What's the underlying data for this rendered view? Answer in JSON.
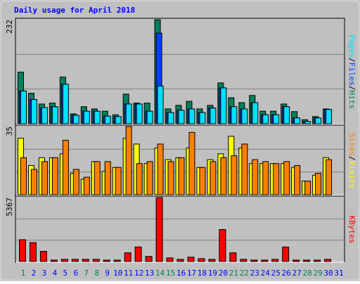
{
  "chart_data": {
    "type": "bar",
    "title": "Daily usage for April 2018",
    "categories": [
      "1",
      "2",
      "3",
      "4",
      "5",
      "6",
      "7",
      "8",
      "9",
      "10",
      "11",
      "12",
      "13",
      "14",
      "15",
      "16",
      "17",
      "18",
      "19",
      "20",
      "21",
      "22",
      "23",
      "24",
      "25",
      "26",
      "27",
      "28",
      "29",
      "30",
      "31"
    ],
    "category_colors": [
      "#00805c",
      "#0000ff",
      "#0000ff",
      "#0000ff",
      "#0000ff",
      "#0000ff",
      "#00805c",
      "#00805c",
      "#0000ff",
      "#0000ff",
      "#0000ff",
      "#0000ff",
      "#0000ff",
      "#00805c",
      "#00805c",
      "#0000ff",
      "#0000ff",
      "#0000ff",
      "#0000ff",
      "#0000ff",
      "#00805c",
      "#00805c",
      "#0000ff",
      "#0000ff",
      "#0000ff",
      "#0000ff",
      "#0000ff",
      "#00805c",
      "#00805c",
      "#0000ff",
      "#0000ff"
    ],
    "separator": "/",
    "grid": true,
    "panels": [
      {
        "ylim": [
          0,
          232
        ],
        "yticks": [
          232
        ],
        "series": [
          {
            "name": "Hits",
            "color": "#00805c",
            "values": [
              115,
              68,
              44,
              46,
              104,
              22,
              38,
              33,
              28,
              20,
              66,
              46,
              46,
              232,
              33,
              41,
              50,
              33,
              41,
              91,
              58,
              47,
              63,
              28,
              28,
              44,
              27,
              9,
              16,
              33,
              0
            ]
          },
          {
            "name": "Files",
            "color": "#0040ff",
            "values": [
              73,
              54,
              36,
              38,
              88,
              19,
              28,
              28,
              17,
              16,
              44,
              44,
              28,
              202,
              25,
              30,
              33,
              25,
              35,
              80,
              38,
              33,
              47,
              20,
              20,
              38,
              13,
              5,
              13,
              32,
              0
            ]
          },
          {
            "name": "Pages",
            "color": "#00e0ff",
            "values": [
              73,
              54,
              36,
              38,
              88,
              19,
              28,
              28,
              17,
              16,
              44,
              44,
              28,
              84,
              25,
              30,
              33,
              25,
              35,
              80,
              38,
              33,
              47,
              20,
              20,
              38,
              13,
              5,
              13,
              32,
              0
            ]
          }
        ]
      },
      {
        "ylim": [
          0,
          35
        ],
        "yticks": [
          35
        ],
        "series": [
          {
            "name": "Visits",
            "color": "#ffff00",
            "values": [
              29,
              15,
              19,
              19,
              21,
              11,
              8,
              17,
              12,
              14,
              29,
              26,
              16,
              24,
              18,
              19,
              24,
              14,
              18,
              21,
              30,
              24,
              16,
              16,
              16,
              16,
              14,
              7,
              10,
              19,
              0
            ]
          },
          {
            "name": "Sites",
            "color": "#ff8000",
            "values": [
              19,
              13,
              17,
              19,
              28,
              13,
              9,
              17,
              17,
              14,
              35,
              16,
              17,
              26,
              17,
              19,
              32,
              14,
              17,
              19,
              20,
              26,
              18,
              17,
              16,
              17,
              15,
              7,
              11,
              18,
              0
            ]
          }
        ]
      },
      {
        "ylim": [
          0,
          5367
        ],
        "yticks": [
          5367
        ],
        "series": [
          {
            "name": "KBytes",
            "color": "#ff0000",
            "values": [
              1830,
              1586,
              854,
              122,
              183,
              183,
              183,
              183,
              122,
              122,
              732,
              1220,
              427,
              5367,
              305,
              183,
              366,
              244,
              183,
              2684,
              732,
              183,
              122,
              122,
              183,
              1220,
              122,
              122,
              122,
              183,
              0
            ]
          }
        ]
      }
    ]
  }
}
